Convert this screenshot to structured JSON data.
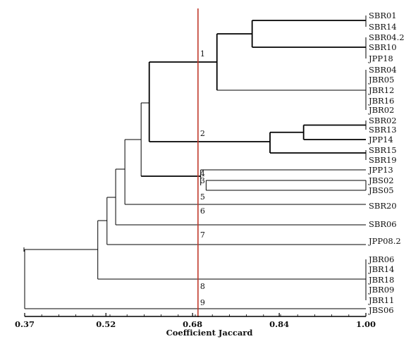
{
  "chart_data": {
    "type": "dendrogram",
    "xlabel": "Coefficient Jaccard",
    "xlim": [
      0.37,
      1.0
    ],
    "x_ticks": [
      "0.37",
      "0.52",
      "0.68",
      "0.84",
      "1.00"
    ],
    "cutoff": 0.69,
    "leaves": [
      "SBR01",
      "SBR14",
      "SBR04.2",
      "SBR10",
      "JPP18",
      "SBR04",
      "JBR05",
      "JBR12",
      "JBR16",
      "JBR02",
      "SBR02",
      "SBR13",
      "JPP14",
      "SBR15",
      "SBR19",
      "JPP13",
      "JBS02",
      "JBS05",
      "SBR20",
      "SBR06",
      "JPP08.2",
      "JBR06",
      "JBR14",
      "JBR18",
      "JBR09",
      "JBR11",
      "JBS06"
    ],
    "cluster_labels": [
      "1",
      "2",
      "3",
      "4",
      "5",
      "6",
      "7",
      "8",
      "9"
    ],
    "merges": [
      {
        "members": [
          "SBR01",
          "SBR14"
        ],
        "similarity": 1.0
      },
      {
        "members": [
          "SBR04.2",
          "SBR10",
          "JPP18"
        ],
        "similarity": 1.0
      },
      {
        "members": [
          "SBR04",
          "JBR05",
          "JBR12",
          "JBR16",
          "JBR02"
        ],
        "similarity": 1.0
      },
      {
        "members": [
          "SBR02",
          "SBR13"
        ],
        "similarity": 1.0
      },
      {
        "members": [
          "SBR15",
          "SBR19"
        ],
        "similarity": 1.0
      },
      {
        "members": [
          "JBS02",
          "JBS05"
        ],
        "similarity": 1.0
      },
      {
        "members": [
          "JBR06",
          "JBR14",
          "JBR18",
          "JBR09",
          "JBR11"
        ],
        "similarity": 1.0
      },
      {
        "members": [
          "SBR01-SBR14",
          "SBR04.2-JPP18"
        ],
        "similarity": 0.79
      },
      {
        "members": [
          "SBR01-JPP18",
          "SBR04-JBR02"
        ],
        "similarity": 0.72
      },
      {
        "members": [
          "SBR02-SBR13",
          "JPP14"
        ],
        "similarity": 0.88
      },
      {
        "members": [
          "SBR02-JPP14",
          "SBR15-SBR19"
        ],
        "similarity": 0.82
      },
      {
        "members": [
          "SBR01-JBR02",
          "SBR02-SBR19"
        ],
        "similarity": 0.6
      },
      {
        "members": [
          "JPP13",
          "JBS02-JBS05"
        ],
        "similarity": 0.7
      },
      {
        "members": [
          "JBR06-JBR11",
          "JBS06"
        ],
        "similarity": 0.37
      }
    ]
  }
}
